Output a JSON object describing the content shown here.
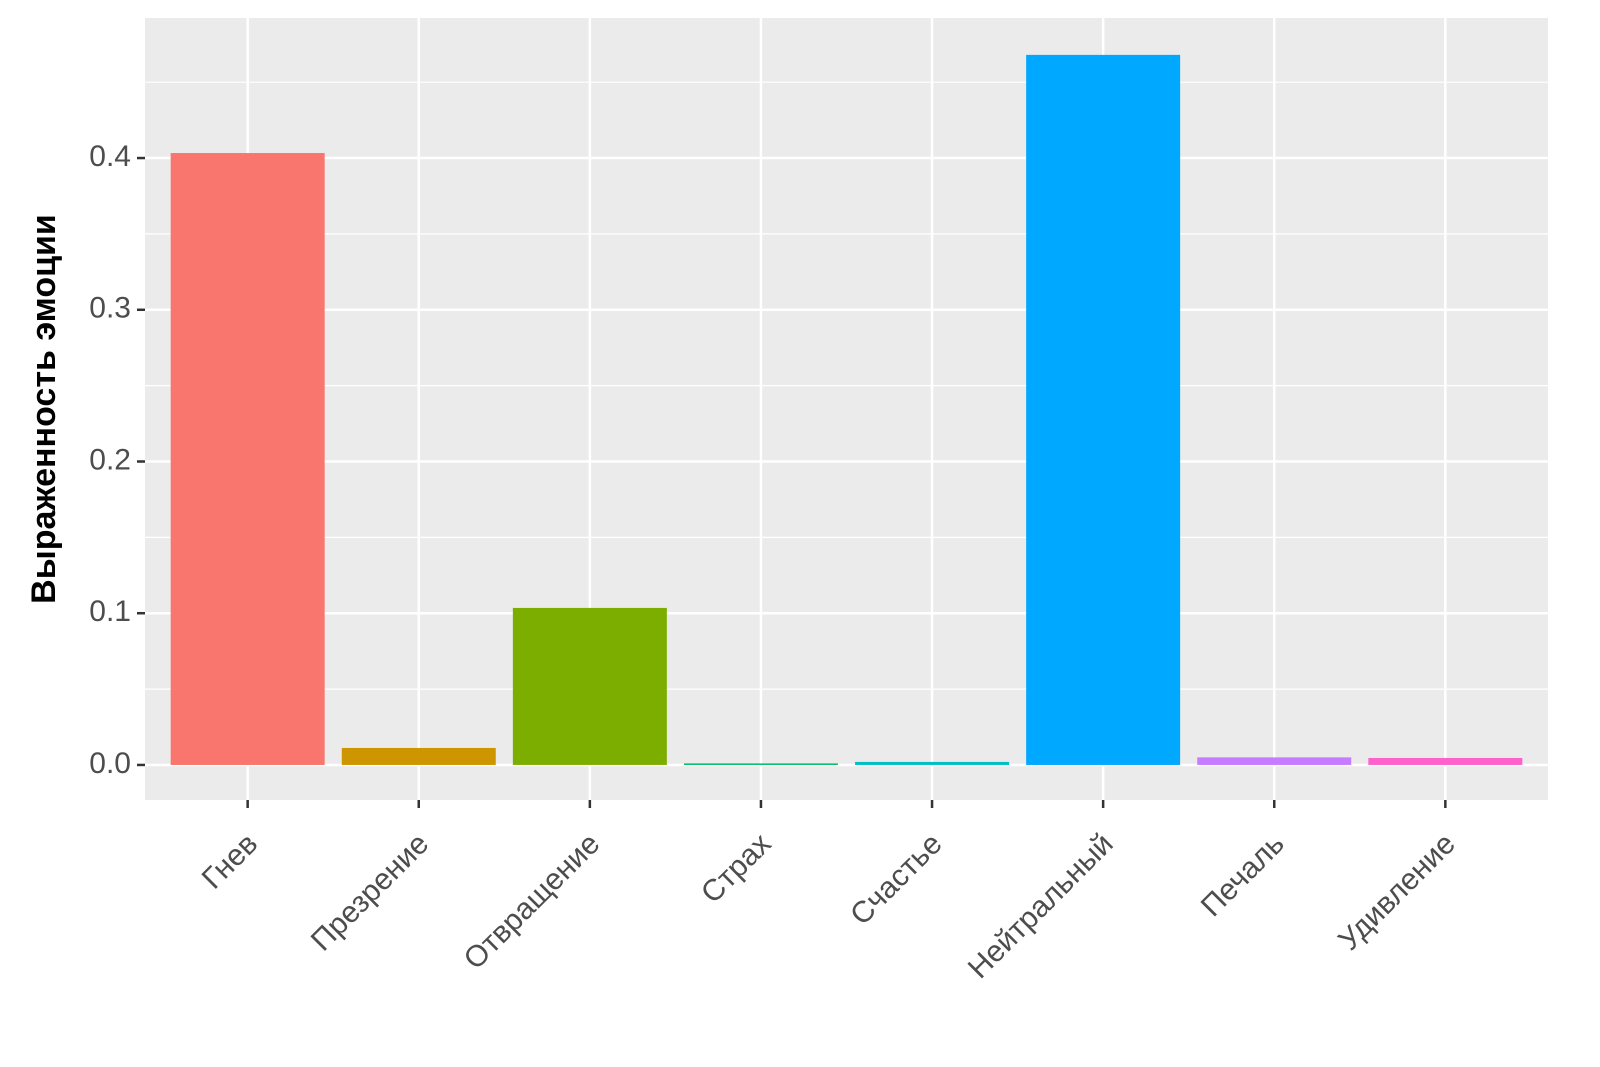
{
  "chart_data": {
    "type": "bar",
    "y_label": "Выраженность эмоции",
    "categories": [
      "Гнев",
      "Презрение",
      "Отвращение",
      "Страх",
      "Счастье",
      "Нейтральный",
      "Печаль",
      "Удивление"
    ],
    "values": [
      0.4033,
      0.0112,
      0.1035,
      0.001,
      0.002,
      0.468,
      0.005,
      0.0046
    ],
    "colors": [
      "#F8766D",
      "#CD9600",
      "#7CAE00",
      "#00BE67",
      "#00BFC4",
      "#00A9FF",
      "#C77CFF",
      "#FF61CC"
    ],
    "ylim": [
      -0.0231,
      0.4923
    ],
    "yticks": [
      {
        "value": 0,
        "label": "0.0"
      },
      0.1,
      0.2,
      0.3,
      0.4
    ],
    "y_minor_ticks": [
      0.05,
      0.15,
      0.25,
      0.35,
      0.45
    ],
    "grid": true
  }
}
